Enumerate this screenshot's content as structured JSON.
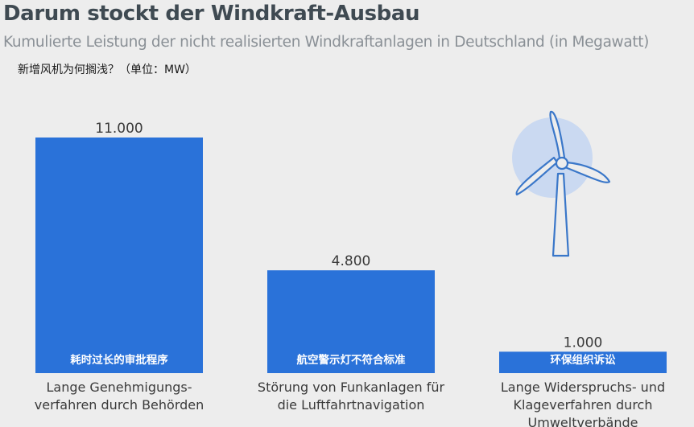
{
  "title": "Darum stockt der Windkraft-Ausbau",
  "subtitle": "Kumulierte Leistung der nicht realisierten Windkraftanlagen in Deutschland (in Megawatt)",
  "question": "新增风机为何搁浅？（单位：MW）",
  "colors": {
    "bar": "#2a72d9",
    "turbine_stroke": "#3a77c9",
    "turbine_circle": "#cad9f1",
    "background": "#ededed"
  },
  "icon": "wind-turbine-icon",
  "chart_data": {
    "type": "bar",
    "categories": [
      [
        "Lange Genehmigungs-",
        "verfahren durch Behörden"
      ],
      [
        "Störung von Funkanlagen für",
        "die Luftfahrtnavigation"
      ],
      [
        "Lange Widerspruchs- und",
        "Klageverfahren durch",
        "Umweltverbände"
      ]
    ],
    "values": [
      11000,
      4800,
      1000
    ],
    "value_labels": [
      "11.000",
      "4.800",
      "1.000"
    ],
    "bar_labels_zh": [
      "耗时过长的审批程序",
      "航空警示灯不符合标准",
      "环保组织诉讼"
    ],
    "ylim": [
      0,
      11000
    ],
    "grid": false,
    "legend": "none"
  }
}
